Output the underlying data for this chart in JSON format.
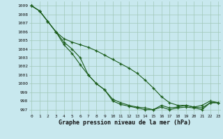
{
  "title": "Graphe pression niveau de la mer (hPa)",
  "bg_color": "#c8e8ee",
  "grid_color": "#a0c8b8",
  "line_color": "#1a5c1a",
  "xlim": [
    -0.3,
    23.3
  ],
  "ylim": [
    996.5,
    1009.5
  ],
  "yticks": [
    997,
    998,
    999,
    1000,
    1001,
    1002,
    1003,
    1004,
    1005,
    1006,
    1007,
    1008,
    1009
  ],
  "xticks": [
    0,
    1,
    2,
    3,
    4,
    5,
    6,
    7,
    8,
    9,
    10,
    11,
    12,
    13,
    14,
    15,
    16,
    17,
    18,
    19,
    20,
    21,
    22,
    23
  ],
  "s1": [
    1009.0,
    1008.4,
    1007.2,
    1006.0,
    1004.8,
    1004.0,
    1003.0,
    1001.0,
    1000.0,
    999.3,
    998.2,
    997.8,
    997.5,
    997.3,
    997.2,
    997.0,
    997.5,
    997.2,
    997.3,
    997.5,
    997.3,
    997.2,
    997.8,
    997.8
  ],
  "s2": [
    1009.0,
    1008.4,
    1007.2,
    1006.0,
    1004.5,
    1003.5,
    1002.2,
    1001.0,
    1000.0,
    999.3,
    998.0,
    997.6,
    997.4,
    997.2,
    997.0,
    997.0,
    997.3,
    997.0,
    997.2,
    997.3,
    997.2,
    997.0,
    997.8,
    997.8
  ],
  "s3": [
    1009.0,
    1008.4,
    1007.2,
    1006.0,
    1005.2,
    1004.8,
    1004.5,
    1004.2,
    1003.8,
    1003.3,
    1002.8,
    1002.3,
    1001.8,
    1001.2,
    1000.4,
    999.5,
    998.5,
    997.8,
    997.5,
    997.5,
    997.3,
    997.5,
    998.0,
    997.8
  ]
}
